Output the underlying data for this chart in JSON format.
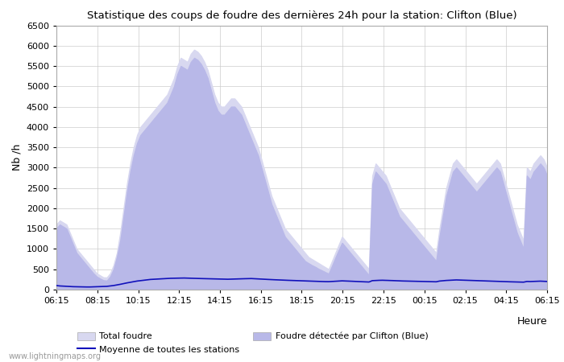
{
  "title": "Statistique des coups de foudre des dernières 24h pour la station: Clifton (Blue)",
  "xlabel": "Heure",
  "ylabel": "Nb /h",
  "watermark": "www.lightningmaps.org",
  "ylim": [
    0,
    6500
  ],
  "x_labels": [
    "06:15",
    "08:15",
    "10:15",
    "12:15",
    "14:15",
    "16:15",
    "18:15",
    "20:15",
    "22:15",
    "00:15",
    "02:15",
    "04:15",
    "06:15"
  ],
  "background_color": "#ffffff",
  "total_foudre_color": "#d8d8f0",
  "clifton_color": "#b8b8e8",
  "mean_line_color": "#1111bb",
  "grid_color": "#cccccc",
  "total_foudre": [
    1600,
    1700,
    1650,
    1600,
    1400,
    1200,
    1000,
    900,
    800,
    700,
    600,
    500,
    400,
    350,
    300,
    300,
    400,
    600,
    900,
    1400,
    2000,
    2600,
    3100,
    3500,
    3800,
    4000,
    4100,
    4200,
    4300,
    4400,
    4500,
    4600,
    4700,
    4800,
    5000,
    5200,
    5500,
    5700,
    5650,
    5600,
    5800,
    5900,
    5850,
    5750,
    5600,
    5400,
    5100,
    4800,
    4600,
    4500,
    4500,
    4600,
    4700,
    4700,
    4600,
    4500,
    4300,
    4100,
    3900,
    3700,
    3500,
    3200,
    2900,
    2600,
    2300,
    2100,
    1900,
    1700,
    1500,
    1400,
    1300,
    1200,
    1100,
    1000,
    900,
    800,
    750,
    700,
    650,
    600,
    550,
    500,
    700,
    900,
    1100,
    1300,
    1200,
    1100,
    1000,
    900,
    800,
    700,
    600,
    500,
    2800,
    3100,
    3000,
    2900,
    2800,
    2600,
    2400,
    2200,
    2000,
    1900,
    1800,
    1700,
    1600,
    1500,
    1400,
    1300,
    1200,
    1100,
    1000,
    900,
    1500,
    2000,
    2500,
    2800,
    3100,
    3200,
    3100,
    3000,
    2900,
    2800,
    2700,
    2600,
    2700,
    2800,
    2900,
    3000,
    3100,
    3200,
    3100,
    2800,
    2500,
    2200,
    1900,
    1600,
    1400,
    1200,
    3000,
    2900,
    3100,
    3200,
    3300,
    3200,
    3000
  ],
  "clifton_foudre": [
    1500,
    1600,
    1550,
    1500,
    1300,
    1100,
    900,
    800,
    700,
    600,
    500,
    400,
    320,
    270,
    230,
    220,
    320,
    500,
    800,
    1200,
    1800,
    2400,
    2900,
    3300,
    3600,
    3800,
    3900,
    4000,
    4100,
    4200,
    4300,
    4400,
    4500,
    4600,
    4800,
    5000,
    5300,
    5500,
    5450,
    5400,
    5600,
    5700,
    5650,
    5550,
    5400,
    5200,
    4900,
    4600,
    4400,
    4300,
    4300,
    4400,
    4500,
    4500,
    4400,
    4300,
    4100,
    3900,
    3700,
    3500,
    3300,
    3000,
    2700,
    2400,
    2100,
    1900,
    1700,
    1500,
    1300,
    1200,
    1100,
    1000,
    900,
    800,
    700,
    650,
    600,
    560,
    510,
    470,
    430,
    390,
    580,
    780,
    970,
    1150,
    1050,
    950,
    850,
    750,
    650,
    550,
    450,
    350,
    2600,
    2900,
    2800,
    2700,
    2600,
    2400,
    2200,
    2000,
    1800,
    1700,
    1600,
    1500,
    1400,
    1300,
    1200,
    1100,
    1000,
    900,
    800,
    700,
    1300,
    1800,
    2300,
    2600,
    2900,
    3000,
    2900,
    2800,
    2700,
    2600,
    2500,
    2400,
    2500,
    2600,
    2700,
    2800,
    2900,
    3000,
    2900,
    2600,
    2300,
    2000,
    1700,
    1400,
    1200,
    1000,
    2800,
    2700,
    2900,
    3000,
    3100,
    3000,
    2800
  ],
  "mean_line": [
    100,
    90,
    85,
    80,
    75,
    72,
    70,
    68,
    65,
    65,
    65,
    68,
    70,
    72,
    75,
    80,
    90,
    100,
    115,
    130,
    148,
    165,
    180,
    195,
    210,
    220,
    230,
    240,
    250,
    255,
    260,
    265,
    270,
    275,
    278,
    280,
    282,
    285,
    285,
    282,
    280,
    278,
    275,
    272,
    270,
    268,
    265,
    262,
    260,
    258,
    256,
    255,
    258,
    260,
    262,
    265,
    268,
    270,
    272,
    268,
    265,
    260,
    255,
    250,
    245,
    242,
    238,
    235,
    232,
    228,
    225,
    222,
    218,
    215,
    212,
    208,
    205,
    202,
    200,
    198,
    196,
    195,
    200,
    205,
    210,
    215,
    212,
    208,
    205,
    200,
    197,
    194,
    190,
    187,
    220,
    225,
    228,
    230,
    228,
    225,
    222,
    218,
    215,
    212,
    210,
    208,
    206,
    204,
    202,
    200,
    198,
    196,
    194,
    192,
    210,
    218,
    225,
    230,
    235,
    238,
    235,
    232,
    228,
    225,
    222,
    218,
    215,
    212,
    210,
    208,
    205,
    202,
    200,
    197,
    194,
    192,
    190,
    188,
    185,
    183,
    200,
    198,
    202,
    205,
    208,
    205,
    200
  ]
}
